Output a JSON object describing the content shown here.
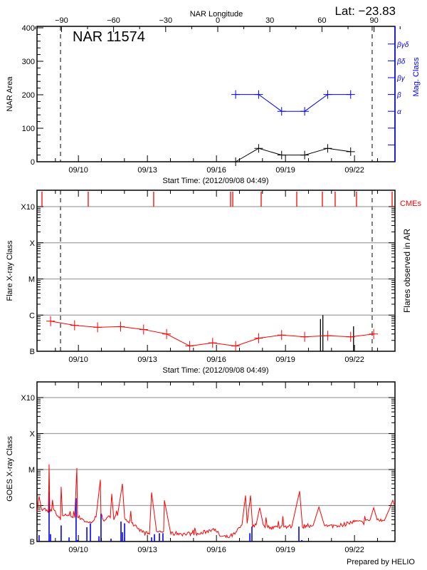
{
  "header": {
    "lat_label": "Lat: −23.83"
  },
  "footer": {
    "prepared_by": "Prepared by HELIO"
  },
  "colors": {
    "area": "#000000",
    "mag_class": "#0000ff",
    "flare_trend": "#ff0000",
    "cme": "#ff0000",
    "goes_long": "#ff0000",
    "goes_events": "#0000ff",
    "grid": "#a0a0a0",
    "limb": "#000000"
  },
  "time_axis": {
    "xlim": [
      "2012-09-08T04:49",
      "2012-09-23T18:15"
    ],
    "ticks": [
      {
        "label": "09/10",
        "time": "2012-09-10T00:00"
      },
      {
        "label": "09/13",
        "time": "2012-09-13T00:00"
      },
      {
        "label": "09/16",
        "time": "2012-09-16T00:00"
      },
      {
        "label": "09/19",
        "time": "2012-09-19T00:00"
      },
      {
        "label": "09/22",
        "time": "2012-09-22T00:00"
      }
    ],
    "limb_crossings": [
      "2012-09-09T05:20",
      "2012-09-22T18:25"
    ]
  },
  "chart_data": [
    {
      "type": "line",
      "title": "NAR 11574",
      "top_axis_label": "NAR Longitude",
      "top_ticks": [
        -90,
        -60,
        -30,
        0,
        30,
        60,
        90
      ],
      "xlabel": "Start Time: (2012/09/08 04:49)",
      "ylabel": "NAR Area",
      "ylim": [
        0,
        400
      ],
      "yticks": [
        0,
        100,
        200,
        300,
        400
      ],
      "y2label": "Mag. Class",
      "y2_ticks": [
        "",
        "",
        "α",
        "β",
        "βγ",
        "βδ",
        "βγδ"
      ],
      "series": [
        {
          "x": [
            "2012-09-16T20:00",
            "2012-09-17T20:00",
            "2012-09-18T20:00",
            "2012-09-19T20:00",
            "2012-09-20T20:00",
            "2012-09-21T20:00"
          ],
          "values": [
            0,
            40,
            20,
            20,
            40,
            30
          ]
        },
        {
          "x": [
            "2012-09-16T20:00",
            "2012-09-17T20:00",
            "2012-09-18T20:00",
            "2012-09-19T20:00",
            "2012-09-20T20:00",
            "2012-09-21T20:00"
          ],
          "values": [
            "β",
            "β",
            "α",
            "α",
            "β",
            "β"
          ]
        }
      ]
    },
    {
      "type": "line",
      "xlabel": "Start Time: (2012/09/08 04:49)",
      "ylabel": "Flare X-ray Class",
      "y2label": "Flares observed in AR",
      "class_ticks": [
        "B",
        "C",
        "M",
        "X",
        "X10"
      ],
      "ylim_flux": [
        1e-07,
        0.001
      ],
      "cme_label": "CMEs",
      "cmes": [
        "2012-09-08T10:00",
        "2012-09-10T10:15",
        "2012-09-13T06:30",
        "2012-09-16T14:45",
        "2012-09-16T17:00",
        "2012-09-17T22:40",
        "2012-09-19T11:45",
        "2012-09-20T14:30",
        "2012-09-21T03:50",
        "2012-09-22T02:05",
        "2012-09-23T15:15"
      ],
      "series": [
        {
          "x": [
            "2012-09-08T19:00",
            "2012-09-09T20:00",
            "2012-09-10T20:00",
            "2012-09-11T20:00",
            "2012-09-12T20:00",
            "2012-09-13T20:00",
            "2012-09-14T20:00",
            "2012-09-15T20:00",
            "2012-09-16T20:00",
            "2012-09-17T20:00",
            "2012-09-18T20:00",
            "2012-09-19T20:00",
            "2012-09-20T20:00",
            "2012-09-21T20:00",
            "2012-09-22T20:00"
          ],
          "values": [
            6.8e-07,
            5.2e-07,
            4.6e-07,
            4.8e-07,
            4e-07,
            3e-07,
            1.4e-07,
            1.7e-07,
            1.4e-07,
            2.3e-07,
            2.8e-07,
            2.5e-07,
            2.7e-07,
            2.5e-07,
            3e-07
          ]
        }
      ],
      "flares_observed": [
        {
          "time": "2012-09-20T12:30",
          "flux": 7.8e-07
        },
        {
          "time": "2012-09-20T15:00",
          "flux": 1e-06
        },
        {
          "time": "2012-09-21T23:00",
          "flux": 4.9e-07
        }
      ]
    },
    {
      "type": "line",
      "ylabel": "GOES X-ray Class",
      "class_ticks": [
        "B",
        "C",
        "M",
        "X",
        "X10"
      ],
      "ylim_flux": [
        1e-07,
        0.001
      ],
      "series": [
        {
          "points": [
            [
              "2012-09-08T04:49",
              6.6e-07
            ],
            [
              "2012-09-08T07:00",
              1.8e-06
            ],
            [
              "2012-09-08T09:20",
              8.3e-07
            ],
            [
              "2012-09-08T12:15",
              8.3e-07
            ],
            [
              "2012-09-08T16:40",
              6.3e-07
            ],
            [
              "2012-09-08T17:25",
              1.4e-05
            ],
            [
              "2012-09-08T18:10",
              6.6e-07
            ],
            [
              "2012-09-08T21:55",
              8.3e-07
            ],
            [
              "2012-09-09T01:35",
              5.2e-07
            ],
            [
              "2012-09-09T05:20",
              4e-07
            ],
            [
              "2012-09-09T06:00",
              3.3e-06
            ],
            [
              "2012-09-09T07:30",
              5.2e-07
            ],
            [
              "2012-09-09T10:30",
              5.8e-07
            ],
            [
              "2012-09-09T14:15",
              5.2e-07
            ],
            [
              "2012-09-09T16:25",
              4.8e-07
            ],
            [
              "2012-09-09T20:10",
              4.6e-07
            ],
            [
              "2012-09-09T22:25",
              1.1e-05
            ],
            [
              "2012-09-09T23:05",
              4.8e-07
            ],
            [
              "2012-09-10T03:35",
              4.4e-07
            ],
            [
              "2012-09-10T07:20",
              3.6e-07
            ],
            [
              "2012-09-10T11:00",
              3.3e-07
            ],
            [
              "2012-09-10T14:45",
              3.6e-07
            ],
            [
              "2012-09-10T18:25",
              4.8e-07
            ],
            [
              "2012-09-10T22:55",
              5.2e-06
            ],
            [
              "2012-09-10T23:35",
              5.8e-07
            ],
            [
              "2012-09-11T01:50",
              4e-07
            ],
            [
              "2012-09-11T05:35",
              4.6e-07
            ],
            [
              "2012-09-11T09:15",
              4.6e-07
            ],
            [
              "2012-09-11T10:45",
              2.1e-06
            ],
            [
              "2012-09-11T13:00",
              4e-07
            ],
            [
              "2012-09-11T16:45",
              5.2e-07
            ],
            [
              "2012-09-11T21:55",
              4e-06
            ],
            [
              "2012-09-12T00:10",
              4.6e-07
            ],
            [
              "2012-09-12T03:50",
              3.6e-07
            ],
            [
              "2012-09-12T07:35",
              3.3e-07
            ],
            [
              "2012-09-12T11:15",
              2.9e-07
            ],
            [
              "2012-09-12T15:00",
              2.3e-07
            ],
            [
              "2012-09-12T18:40",
              1.8e-07
            ],
            [
              "2012-09-13T02:05",
              1.6e-07
            ],
            [
              "2012-09-13T04:20",
              2.3e-06
            ],
            [
              "2012-09-13T09:30",
              1.9e-07
            ],
            [
              "2012-09-13T16:55",
              1.9e-07
            ],
            [
              "2012-09-13T17:40",
              1.4e-06
            ],
            [
              "2012-09-14T00:25",
              1.6e-07
            ],
            [
              "2012-09-14T07:50",
              1.7e-07
            ],
            [
              "2012-09-14T15:15",
              1.6e-07
            ],
            [
              "2012-09-14T22:40",
              1.7e-07
            ],
            [
              "2012-09-15T06:05",
              1.6e-07
            ],
            [
              "2012-09-15T13:30",
              1.9e-07
            ],
            [
              "2012-09-15T20:55",
              2.3e-07
            ],
            [
              "2012-09-16T00:35",
              1.8e-07
            ],
            [
              "2012-09-16T04:20",
              1.4e-07
            ],
            [
              "2012-09-16T11:45",
              1.3e-07
            ],
            [
              "2012-09-16T19:10",
              1.6e-07
            ],
            [
              "2012-09-17T02:35",
              2.9e-07
            ],
            [
              "2012-09-17T06:20",
              1.9e-06
            ],
            [
              "2012-09-17T08:00",
              3.2e-07
            ],
            [
              "2012-09-17T11:30",
              1.9e-06
            ],
            [
              "2012-09-17T13:45",
              2.5e-07
            ],
            [
              "2012-09-17T17:25",
              2.9e-07
            ],
            [
              "2012-09-17T21:05",
              8.7e-07
            ],
            [
              "2012-09-18T00:55",
              2.9e-07
            ],
            [
              "2012-09-18T08:20",
              2.5e-07
            ],
            [
              "2012-09-18T15:45",
              2.5e-07
            ],
            [
              "2012-09-18T23:10",
              2.6e-07
            ],
            [
              "2012-09-19T06:35",
              2.6e-07
            ],
            [
              "2012-09-19T14:45",
              2.5e-06
            ],
            [
              "2012-09-19T17:45",
              2.5e-07
            ],
            [
              "2012-09-19T21:25",
              2.8e-07
            ],
            [
              "2012-09-20T04:50",
              2.8e-07
            ],
            [
              "2012-09-20T10:50",
              9.1e-07
            ],
            [
              "2012-09-20T16:00",
              3.2e-07
            ],
            [
              "2012-09-20T19:45",
              2.6e-07
            ],
            [
              "2012-09-21T03:10",
              2.8e-07
            ],
            [
              "2012-09-21T10:35",
              2.9e-07
            ],
            [
              "2012-09-21T18:00",
              3.2e-07
            ],
            [
              "2012-09-22T01:25",
              3.6e-07
            ],
            [
              "2012-09-22T08:50",
              3.3e-07
            ],
            [
              "2012-09-22T16:15",
              4e-07
            ],
            [
              "2012-09-22T20:00",
              8.7e-07
            ],
            [
              "2012-09-22T23:40",
              4e-07
            ],
            [
              "2012-09-23T07:05",
              3.8e-07
            ],
            [
              "2012-09-23T13:00",
              8.7e-07
            ],
            [
              "2012-09-23T16:00",
              1.4e-06
            ],
            [
              "2012-09-23T18:15",
              1.1e-06
            ]
          ]
        },
        {
          "points": [
            [
              "2012-09-08T07:00",
              1.5e-07
            ],
            [
              "2012-09-08T17:25",
              2.4e-06
            ],
            [
              "2012-09-08T18:55",
              1.6e-07
            ],
            [
              "2012-09-09T06:00",
              2.8e-07
            ],
            [
              "2012-09-09T14:15",
              1.3e-07
            ],
            [
              "2012-09-09T21:35",
              1.6e-06
            ],
            [
              "2012-09-09T23:05",
              1.1e-07
            ],
            [
              "2012-09-10T08:50",
              2.5e-07
            ],
            [
              "2012-09-10T12:30",
              3.2e-07
            ],
            [
              "2012-09-10T21:25",
              1.4e-07
            ],
            [
              "2012-09-10T23:35",
              6e-07
            ],
            [
              "2012-09-11T10:00",
              1.2e-07
            ],
            [
              "2012-09-11T20:25",
              3.6e-07
            ],
            [
              "2012-09-11T21:55",
              1.8e-07
            ],
            [
              "2012-09-12T00:10",
              3.2e-07
            ],
            [
              "2012-09-13T04:20",
              1.3e-07
            ],
            [
              "2012-09-13T07:20",
              1.6e-07
            ],
            [
              "2012-09-13T12:30",
              1.7e-07
            ],
            [
              "2012-09-13T16:10",
              1.7e-07
            ],
            [
              "2012-09-17T10:50",
              1.7e-07
            ],
            [
              "2012-09-17T13:00",
              2.6e-07
            ],
            [
              "2012-09-19T14:00",
              2.6e-07
            ],
            [
              "2012-09-19T17:00",
              1.1e-07
            ]
          ]
        }
      ]
    }
  ]
}
